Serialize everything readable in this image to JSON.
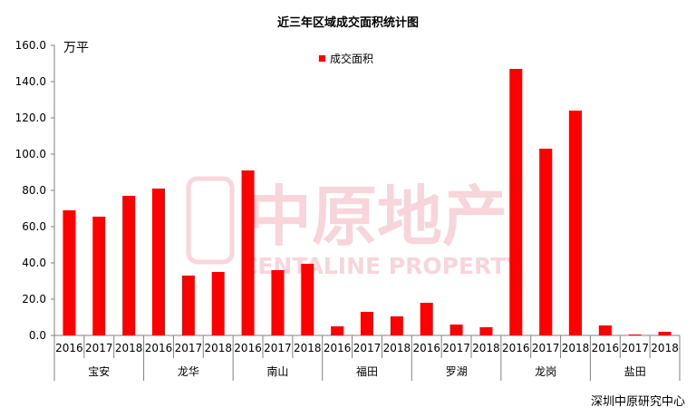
{
  "chart_data": {
    "type": "bar",
    "title": "近三年区域成交面积统计图",
    "ylabel": "万平",
    "xlabel": "",
    "legend": {
      "position": "top-center",
      "entries": [
        "成交面积"
      ]
    },
    "ylim": [
      0,
      160
    ],
    "yticks": [
      "0.0",
      "20.0",
      "40.0",
      "60.0",
      "80.0",
      "100.0",
      "120.0",
      "140.0",
      "160.0"
    ],
    "grid": false,
    "series": [
      {
        "name": "成交面积",
        "color": "#FF0000",
        "values": [
          69,
          65.5,
          77,
          81,
          33,
          35,
          91,
          36,
          39.5,
          5,
          13,
          10.5,
          18,
          6,
          4.5,
          147,
          103,
          124,
          5.5,
          0.5,
          2
        ]
      }
    ],
    "categories": [
      "2016",
      "2017",
      "2018",
      "2016",
      "2017",
      "2018",
      "2016",
      "2017",
      "2018",
      "2016",
      "2017",
      "2018",
      "2016",
      "2017",
      "2018",
      "2016",
      "2017",
      "2018",
      "2016",
      "2017",
      "2018"
    ],
    "groups": [
      "宝安",
      "龙华",
      "南山",
      "福田",
      "罗湖",
      "龙岗",
      "盐田"
    ],
    "source": "深圳中原研究中心",
    "watermark": {
      "cn": "中原地产",
      "en": "CENTALINE PROPERTY"
    }
  }
}
